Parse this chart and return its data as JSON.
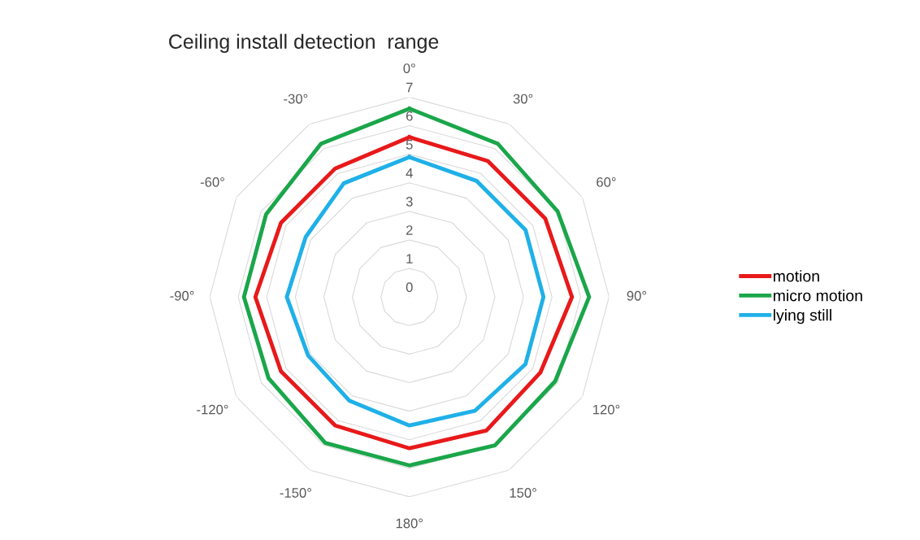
{
  "chart_data": {
    "type": "radar",
    "title": "Ceiling install detection  range",
    "categories": [
      "0°",
      "30°",
      "60°",
      "90°",
      "120°",
      "150°",
      "180°",
      "-150°",
      "-120°",
      "-90°",
      "-60°",
      "-30°"
    ],
    "series": [
      {
        "name": "motion",
        "color": "#e8191a",
        "values": [
          5.6,
          5.5,
          5.5,
          5.7,
          5.3,
          5.4,
          5.3,
          5.2,
          5.2,
          5.4,
          5.2,
          5.2
        ]
      },
      {
        "name": "micro motion",
        "color": "#1aa64a",
        "values": [
          6.6,
          6.2,
          6.0,
          6.3,
          5.9,
          6.0,
          5.9,
          5.9,
          5.7,
          5.8,
          5.8,
          6.2
        ]
      },
      {
        "name": "lying still",
        "color": "#1fb0e8",
        "values": [
          4.9,
          4.7,
          4.7,
          4.7,
          4.7,
          4.6,
          4.5,
          4.2,
          4.1,
          4.3,
          4.2,
          4.6
        ]
      }
    ],
    "ylim": [
      0,
      7
    ],
    "yticks": [
      0,
      1,
      2,
      3,
      4,
      5,
      6,
      7
    ],
    "grid": true,
    "legend": "right",
    "marker": "none",
    "line_style": "solid"
  }
}
